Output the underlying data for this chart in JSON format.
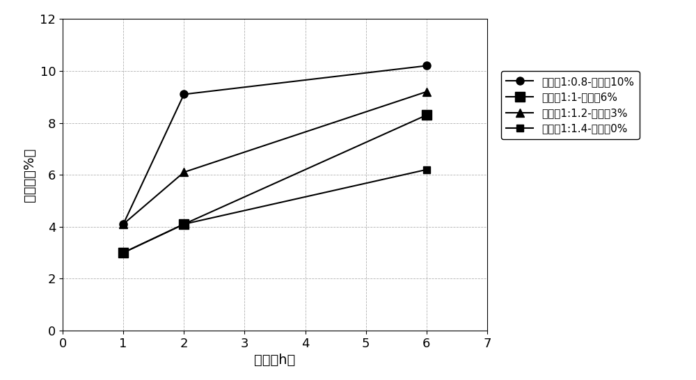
{
  "series": [
    {
      "label": "水灰比1:0.8-稳定剩10%",
      "x": [
        1,
        2,
        6
      ],
      "y": [
        4.1,
        9.1,
        10.2
      ],
      "marker": "o",
      "markersize": 8,
      "color": "#000000",
      "linewidth": 1.5
    },
    {
      "label": "水灰比1:1-稳定剩6%",
      "x": [
        1,
        2,
        6
      ],
      "y": [
        3.0,
        4.1,
        8.3
      ],
      "marker": "s",
      "markersize": 10,
      "color": "#000000",
      "linewidth": 1.5
    },
    {
      "label": "水灰比1:1.2-稳定剩3%",
      "x": [
        1,
        2,
        6
      ],
      "y": [
        4.1,
        6.1,
        9.2
      ],
      "marker": "^",
      "markersize": 9,
      "color": "#000000",
      "linewidth": 1.5
    },
    {
      "label": "水灰比1:1.4-稳定剩0%",
      "x": [
        1,
        2,
        6
      ],
      "y": [
        3.0,
        4.1,
        6.2
      ],
      "marker": "s",
      "markersize": 7,
      "color": "#000000",
      "linewidth": 1.5
    }
  ],
  "xlabel": "时间（h）",
  "ylabel": "泌水率（%）",
  "xlim": [
    0,
    7
  ],
  "ylim": [
    0,
    12
  ],
  "xticks": [
    0,
    1,
    2,
    3,
    4,
    5,
    6,
    7
  ],
  "yticks": [
    0,
    2,
    4,
    6,
    8,
    10,
    12
  ],
  "grid_color": "#b0b0b0",
  "grid_linestyle": "--",
  "grid_linewidth": 0.6,
  "background_color": "#ffffff",
  "font_size": 13,
  "label_font_size": 14,
  "legend_fontsize": 11
}
